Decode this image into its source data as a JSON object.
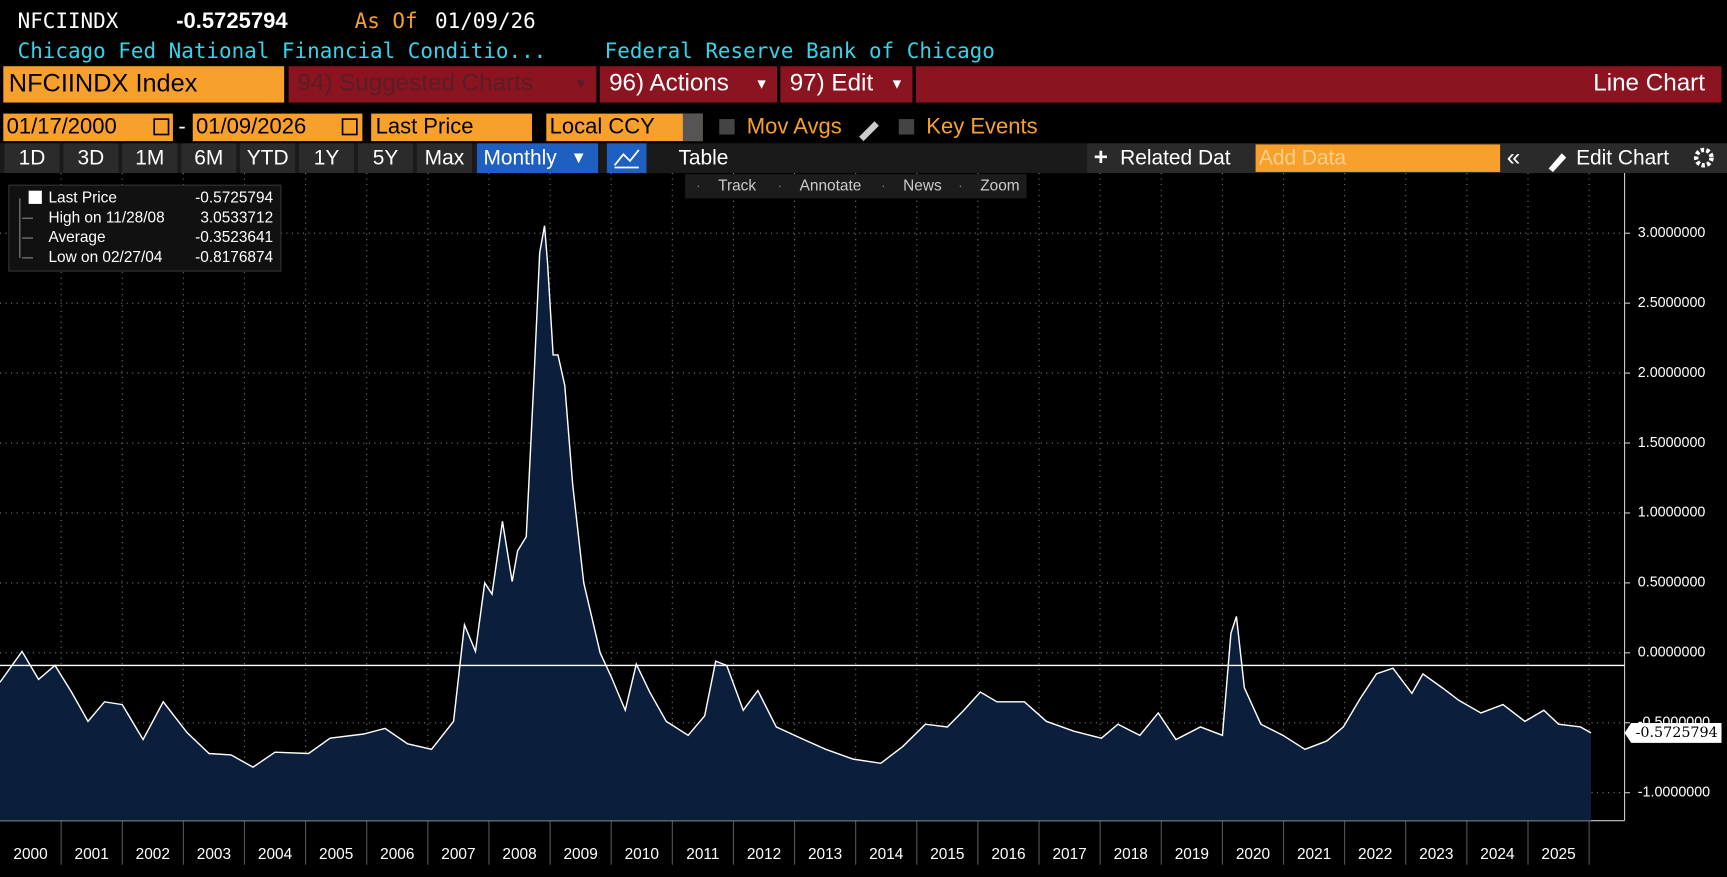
{
  "header": {
    "ticker": "NFCIINDX",
    "price": "-0.5725794",
    "as_of_label": "As Of",
    "as_of_date": "01/09/26",
    "description": "Chicago Fed National Financial Conditio...",
    "source": "Federal Reserve Bank of Chicago"
  },
  "toolbar": {
    "security": "NFCIINDX Index",
    "suggested": "94) Suggested Charts",
    "actions": "96) Actions",
    "edit": "97) Edit",
    "chart_type": "Line Chart"
  },
  "controls": {
    "start_date": "01/17/2000",
    "end_date": "01/09/2026",
    "field": "Last Price",
    "currency": "Local CCY",
    "mov_avgs": "Mov Avgs",
    "key_events": "Key Events"
  },
  "periods": [
    "1D",
    "3D",
    "1M",
    "6M",
    "YTD",
    "1Y",
    "5Y",
    "Max"
  ],
  "frequency": "Monthly",
  "table": "Table",
  "related": "Related Dat",
  "add_data": "Add Data",
  "edit_chart": "Edit Chart",
  "tools": [
    "Track",
    "Annotate",
    "News",
    "Zoom"
  ],
  "chart_data": {
    "type": "line",
    "series": [
      {
        "name": "Last Price",
        "color": "#ffffff",
        "fill": "#0b1f3d",
        "x": [
          2000.0,
          2000.36,
          2000.63,
          2000.9,
          2001.17,
          2001.44,
          2001.71,
          2002.0,
          2002.34,
          2002.67,
          2003.06,
          2003.42,
          2003.78,
          2004.14,
          2004.5,
          2005.05,
          2005.4,
          2005.95,
          2006.3,
          2006.67,
          2007.06,
          2007.42,
          2007.6,
          2007.78,
          2007.93,
          2008.05,
          2008.22,
          2008.38,
          2008.47,
          2008.61,
          2008.74,
          2008.83,
          2008.91,
          2008.96,
          2009.05,
          2009.13,
          2009.24,
          2009.37,
          2009.55,
          2009.82,
          2010.0,
          2010.23,
          2010.41,
          2010.63,
          2010.9,
          2011.26,
          2011.53,
          2011.71,
          2011.89,
          2012.16,
          2012.4,
          2012.7,
          2013.15,
          2013.51,
          2013.96,
          2014.41,
          2014.77,
          2015.14,
          2015.5,
          2015.77,
          2016.04,
          2016.31,
          2016.76,
          2017.12,
          2017.57,
          2018.02,
          2018.29,
          2018.65,
          2018.95,
          2019.24,
          2019.64,
          2020.0,
          2020.14,
          2020.23,
          2020.36,
          2020.63,
          2020.99,
          2021.35,
          2021.71,
          2021.98,
          2022.25,
          2022.52,
          2022.79,
          2023.1,
          2023.28,
          2023.6,
          2023.87,
          2024.23,
          2024.59,
          2024.95,
          2025.26,
          2025.5,
          2025.86,
          2026.03
        ],
        "values": [
          -0.21,
          0.01,
          -0.19,
          -0.09,
          -0.28,
          -0.49,
          -0.35,
          -0.37,
          -0.62,
          -0.35,
          -0.57,
          -0.72,
          -0.73,
          -0.8176874,
          -0.71,
          -0.72,
          -0.61,
          -0.58,
          -0.54,
          -0.65,
          -0.69,
          -0.49,
          0.2,
          0.01,
          0.5,
          0.42,
          0.94,
          0.51,
          0.73,
          0.83,
          1.99,
          2.86,
          3.0533712,
          2.78,
          2.13,
          2.13,
          1.91,
          1.2,
          0.5,
          0.0,
          -0.17,
          -0.41,
          -0.08,
          -0.28,
          -0.49,
          -0.59,
          -0.45,
          -0.06,
          -0.09,
          -0.41,
          -0.27,
          -0.53,
          -0.62,
          -0.69,
          -0.76,
          -0.79,
          -0.67,
          -0.51,
          -0.53,
          -0.41,
          -0.28,
          -0.35,
          -0.35,
          -0.49,
          -0.56,
          -0.61,
          -0.51,
          -0.59,
          -0.43,
          -0.62,
          -0.53,
          -0.59,
          0.14,
          0.26,
          -0.25,
          -0.51,
          -0.59,
          -0.69,
          -0.63,
          -0.53,
          -0.33,
          -0.15,
          -0.11,
          -0.29,
          -0.15,
          -0.25,
          -0.34,
          -0.43,
          -0.37,
          -0.49,
          -0.41,
          -0.51,
          -0.53,
          -0.5725794
        ]
      }
    ],
    "stats": [
      {
        "name": "High on 11/28/08",
        "value": 3.0533712
      },
      {
        "name": "Average",
        "value": -0.3523641
      },
      {
        "name": "Low on 02/27/04",
        "value": -0.8176874
      }
    ],
    "reference_line": -0.09,
    "xlim": [
      2000,
      2026.58
    ],
    "ylim": [
      -1.2,
      3.43
    ],
    "xticks": [
      {
        "value": 2000.5,
        "label": "2000"
      },
      {
        "value": 2001.5,
        "label": "2001"
      },
      {
        "value": 2002.5,
        "label": "2002"
      },
      {
        "value": 2003.5,
        "label": "2003"
      },
      {
        "value": 2004.5,
        "label": "2004"
      },
      {
        "value": 2005.5,
        "label": "2005"
      },
      {
        "value": 2006.5,
        "label": "2006"
      },
      {
        "value": 2007.5,
        "label": "2007"
      },
      {
        "value": 2008.5,
        "label": "2008"
      },
      {
        "value": 2009.5,
        "label": "2009"
      },
      {
        "value": 2010.5,
        "label": "2010"
      },
      {
        "value": 2011.5,
        "label": "2011"
      },
      {
        "value": 2012.5,
        "label": "2012"
      },
      {
        "value": 2013.5,
        "label": "2013"
      },
      {
        "value": 2014.5,
        "label": "2014"
      },
      {
        "value": 2015.5,
        "label": "2015"
      },
      {
        "value": 2016.5,
        "label": "2016"
      },
      {
        "value": 2017.5,
        "label": "2017"
      },
      {
        "value": 2018.5,
        "label": "2018"
      },
      {
        "value": 2019.5,
        "label": "2019"
      },
      {
        "value": 2020.5,
        "label": "2020"
      },
      {
        "value": 2021.5,
        "label": "2021"
      },
      {
        "value": 2022.5,
        "label": "2022"
      },
      {
        "value": 2023.5,
        "label": "2023"
      },
      {
        "value": 2024.5,
        "label": "2024"
      },
      {
        "value": 2025.5,
        "label": "2025"
      }
    ],
    "xgrid": [
      2001,
      2002,
      2003,
      2004,
      2005,
      2006,
      2007,
      2008,
      2009,
      2010,
      2011,
      2012,
      2013,
      2014,
      2015,
      2016,
      2017,
      2018,
      2019,
      2020,
      2021,
      2022,
      2023,
      2024,
      2025,
      2026
    ],
    "yticks": [
      {
        "value": 3,
        "label": "3.0000000"
      },
      {
        "value": 2.5,
        "label": "2.5000000"
      },
      {
        "value": 2,
        "label": "2.0000000"
      },
      {
        "value": 1.5,
        "label": "1.5000000"
      },
      {
        "value": 1,
        "label": "1.0000000"
      },
      {
        "value": 0.5,
        "label": "0.5000000"
      },
      {
        "value": 0,
        "label": "0.0000000"
      },
      {
        "value": -0.5,
        "label": "-0.5000000"
      },
      {
        "value": -1,
        "label": "-1.0000000"
      }
    ],
    "grid": true
  }
}
